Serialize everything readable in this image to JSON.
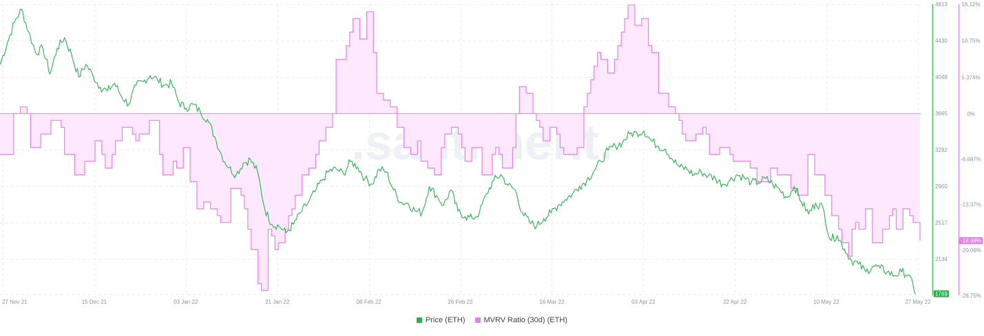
{
  "watermark": ".santiment.",
  "legend": {
    "price": "Price (ETH)",
    "mvrv": "MVRV Ratio (30d) (ETH)"
  },
  "colors": {
    "price": "#26b34a",
    "mvrv": "#e77fe8",
    "mvrv_fill": "#fde8fd",
    "zero_line": "#e77fe8",
    "grid": "#e9ecf1",
    "axis_text": "#8a93a3",
    "watermark": "#edf0f5"
  },
  "chart_data": {
    "type": "line",
    "x_tick_labels": [
      "27 Nov 21",
      "15 Dec 21",
      "03 Jan 22",
      "21 Jan 22",
      "08 Feb 22",
      "26 Feb 22",
      "16 Mar 22",
      "03 Apr 22",
      "22 Apr 22",
      "10 May 22",
      "27 May 22"
    ],
    "x_range": [
      "2021-11-27",
      "2022-05-27"
    ],
    "y_left": {
      "ticks": [
        4813,
        4430,
        4048,
        3665,
        3282,
        2900,
        2517,
        2134,
        1769
      ],
      "range": [
        1751,
        4813
      ],
      "current_value_label": "1769"
    },
    "y_right": {
      "tick_labels": [
        "16.12%",
        "10.75%",
        "5.374%",
        "0%",
        "-6.687%",
        "-13.37%",
        "-20.06%",
        "-26.75%"
      ],
      "tick_values": [
        16.12,
        10.75,
        5.374,
        0,
        -6.687,
        -13.37,
        -20.06,
        -26.75
      ],
      "range": [
        -26.75,
        16.12
      ],
      "current_value_label": "-18.68%"
    },
    "grid": true,
    "series": [
      {
        "name": "Price (ETH)",
        "axis": "left",
        "values": [
          4180,
          4400,
          4620,
          4760,
          4520,
          4300,
          4350,
          4080,
          4350,
          4460,
          4280,
          4050,
          4180,
          4060,
          3940,
          3900,
          3980,
          3840,
          3760,
          3960,
          4000,
          4060,
          4020,
          3960,
          3980,
          3780,
          3720,
          3760,
          3680,
          3600,
          3420,
          3220,
          3090,
          3020,
          3140,
          3180,
          3050,
          2660,
          2500,
          2480,
          2410,
          2500,
          2620,
          2720,
          2840,
          2960,
          3060,
          3080,
          3030,
          3160,
          3100,
          2980,
          2920,
          3080,
          3050,
          2860,
          2730,
          2720,
          2640,
          2620,
          2900,
          2800,
          2700,
          2860,
          2640,
          2580,
          2560,
          2620,
          2820,
          2960,
          3020,
          2910,
          2860,
          2620,
          2520,
          2480,
          2560,
          2620,
          2700,
          2760,
          2820,
          2900,
          2960,
          3060,
          3160,
          3280,
          3320,
          3360,
          3450,
          3460,
          3480,
          3380,
          3320,
          3290,
          3180,
          3100,
          3080,
          3020,
          3050,
          3010,
          2980,
          2920,
          2960,
          3020,
          2990,
          2940,
          2940,
          2980,
          2920,
          2860,
          2780,
          2900,
          2740,
          2610,
          2720,
          2680,
          2340,
          2380,
          2240,
          2120,
          2080,
          2000,
          2060,
          2040,
          2000,
          1960,
          2000,
          1969,
          1769
        ],
        "note": "daily closes estimated from chart, every ~1.45 days"
      },
      {
        "name": "MVRV Ratio (30d) (ETH)",
        "axis": "right",
        "values": [
          -6,
          -6,
          -6,
          -6,
          0,
          0,
          1,
          1,
          0,
          -5,
          -5,
          -5,
          -3,
          -3,
          -3,
          -1,
          -1,
          -1,
          -2,
          -6,
          -6,
          -6,
          -9,
          -9,
          -9,
          -7,
          -7,
          -7,
          -4,
          -4,
          -6,
          -8,
          -8,
          -6,
          -4,
          -4,
          -2,
          -2,
          -2,
          -3,
          -4,
          -3,
          -3,
          -3,
          -1,
          -1,
          -1,
          -6,
          -9,
          -9,
          -9,
          -7,
          -8,
          -8,
          -5,
          -5,
          -10,
          -10,
          -14,
          -14,
          -13,
          -13,
          -14,
          -14,
          -15,
          -16,
          -16,
          -16,
          -11,
          -11,
          -11,
          -12,
          -14,
          -17,
          -20,
          -20,
          -25,
          -26,
          -26,
          -17,
          -18,
          -20,
          -19,
          -19,
          -17,
          -15,
          -14,
          -12,
          -12,
          -9,
          -9,
          -8,
          -8,
          -6,
          -4,
          -4,
          -2,
          -2,
          0,
          8,
          8,
          8,
          10,
          12,
          14,
          14,
          11,
          11,
          15,
          15,
          9,
          3,
          3,
          2,
          2,
          1,
          1,
          -2,
          -2,
          -5,
          -5,
          -6,
          -6,
          -4,
          -7,
          -7,
          -8,
          -8,
          -9,
          -9,
          -5,
          -3,
          -3,
          -2,
          -2,
          -3,
          -5,
          -7,
          -7,
          -5,
          -5,
          -5,
          -9,
          -9,
          -9,
          -6,
          -5,
          -6,
          -8,
          -8,
          -8,
          -5,
          0,
          4,
          4,
          3,
          3,
          0,
          -1,
          -2,
          -4,
          -4,
          -2,
          -2,
          -3,
          -5,
          -6,
          -6,
          -6,
          -6,
          -5,
          -5,
          1,
          3,
          5,
          7,
          9,
          8,
          8,
          6,
          6,
          8,
          10,
          12,
          14,
          16,
          16,
          13,
          13,
          14,
          14,
          10,
          9,
          9,
          3,
          3,
          3,
          1,
          1,
          0,
          -1,
          -3,
          -4,
          -4,
          -4,
          -3,
          -3,
          -2,
          -3,
          -6,
          -6,
          -6,
          -5,
          -5,
          -5,
          -6,
          -7,
          -7,
          -7,
          -7,
          -7,
          -8,
          -8,
          -10,
          -10,
          -10,
          -10,
          -8,
          -8,
          -9,
          -9,
          -9,
          -9,
          -11,
          -11,
          -12,
          -12,
          -12,
          -6,
          -6,
          -9,
          -9,
          -9,
          -12,
          -12,
          -15,
          -15,
          -17,
          -19,
          -19,
          -21,
          -17,
          -16,
          -17,
          -17,
          -14,
          -14,
          -19,
          -19,
          -19,
          -17,
          -17,
          -15,
          -14,
          -17,
          -17,
          -14,
          -14,
          -15,
          -16,
          -16,
          -18.68
        ]
      }
    ]
  }
}
